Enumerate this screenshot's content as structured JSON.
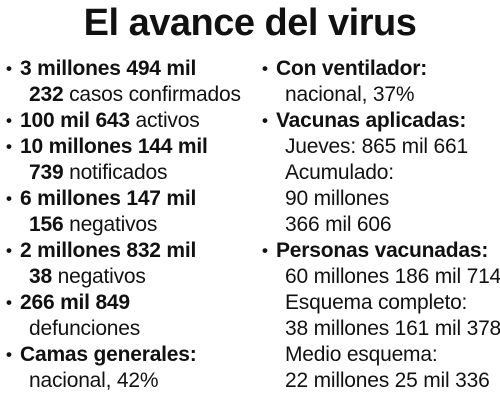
{
  "title": "El avance del virus",
  "bullet_char": "•",
  "left": {
    "casos": {
      "bold1": "3 millones 494 mil",
      "bold2": "232",
      "text2": "casos confirmados"
    },
    "activos": {
      "bold": "100 mil 643",
      "text": "activos"
    },
    "notificados": {
      "bold1": "10 millones 144 mil",
      "bold2": "739",
      "text2": "notificados"
    },
    "negativos1": {
      "bold1": "6 millones 147 mil",
      "bold2": "156",
      "text2": "negativos"
    },
    "negativos2": {
      "bold1": "2 millones 832 mil",
      "bold2": "38",
      "text2": "negativos"
    },
    "defunciones": {
      "bold1": "266 mil 849",
      "text2": "defunciones"
    },
    "camas": {
      "bold1": "Camas generales:",
      "text2": "nacional, 42%"
    }
  },
  "right": {
    "ventilador": {
      "bold1": "Con ventilador:",
      "text2": "nacional, 37%"
    },
    "vacunas": {
      "bold1": "Vacunas aplicadas:",
      "jueves": "Jueves: 865 mil 661",
      "acumulado_label": "Acumulado:",
      "acumulado_1": "90 millones",
      "acumulado_2": "366 mil 606"
    },
    "personas": {
      "bold1": "Personas vacunadas:",
      "total": "60 millones 186 mil 714",
      "completo_label": "Esquema completo:",
      "completo_value": "38 millones 161 mil 378",
      "medio_label": "Medio esquema:",
      "medio_value": "22 millones 25 mil 336"
    }
  }
}
